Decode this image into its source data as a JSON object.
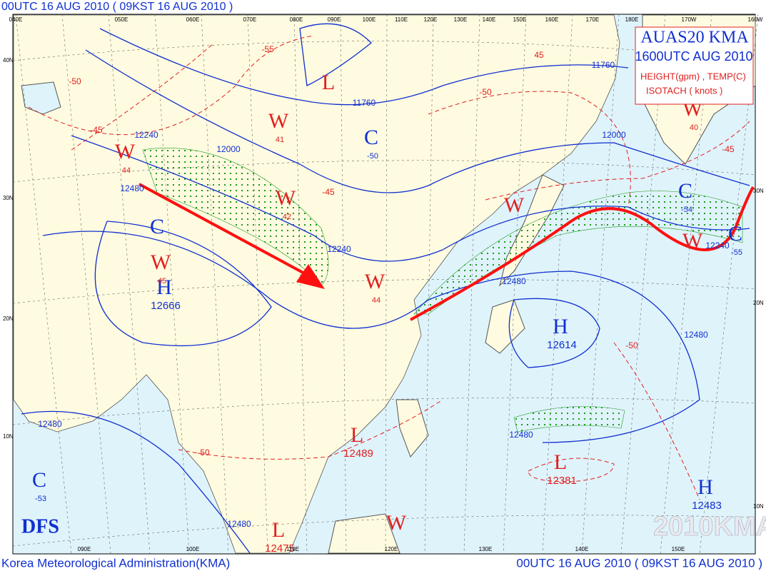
{
  "header": {
    "title": "00UTC 16 AUG 2010 ( 09KST 16 AUG 2010 )"
  },
  "legend_box": {
    "product": "AUAS20 KMA",
    "valid": "1600UTC AUG 2010",
    "line1": "HEIGHT(gpm) , TEMP(C)",
    "line2": "ISOTACH    ( knots )"
  },
  "systems": [
    {
      "symbol": "L",
      "value": null
    },
    {
      "symbol": "C",
      "value": "-50"
    },
    {
      "symbol": "W",
      "value": "41"
    },
    {
      "symbol": "W",
      "value": "44"
    },
    {
      "symbol": "C",
      "value": null
    },
    {
      "symbol": "H",
      "value": "12666"
    },
    {
      "symbol": "W",
      "value": "45"
    },
    {
      "symbol": "W",
      "value": "42"
    },
    {
      "symbol": "W",
      "value": "44"
    },
    {
      "symbol": "H",
      "value": "12614"
    },
    {
      "symbol": "L",
      "value": "12489"
    },
    {
      "symbol": "L",
      "value": "12381"
    },
    {
      "symbol": "H",
      "value": "12483"
    },
    {
      "symbol": "C",
      "value": "-53"
    },
    {
      "symbol": "L",
      "value": "12475"
    },
    {
      "symbol": "W",
      "value": null
    },
    {
      "symbol": "W",
      "value": null
    },
    {
      "symbol": "W",
      "value": null
    },
    {
      "symbol": "C",
      "value": "-54"
    },
    {
      "symbol": "C",
      "value": "-55"
    },
    {
      "symbol": "W",
      "value": "40"
    }
  ],
  "height_labels": [
    "11760",
    "11760",
    "12240",
    "12240",
    "12240",
    "12000",
    "12000",
    "12480",
    "12480",
    "12480",
    "12480",
    "12480",
    "12480"
  ],
  "temp_labels": [
    "-55",
    "-50",
    "-45",
    "-50",
    "45",
    "-45",
    "-50",
    "-50",
    "-45"
  ],
  "lon_top": [
    "040E",
    "050E",
    "060E",
    "070E",
    "080E",
    "090E",
    "100E",
    "110E",
    "120E",
    "130E",
    "140E",
    "150E",
    "160E",
    "170E",
    "180E",
    "170W",
    "160W"
  ],
  "lon_bottom": [
    "090E",
    "100E",
    "110E",
    "120E",
    "130E",
    "140E",
    "150E"
  ],
  "lat_left": [
    "40N",
    "30N",
    "20N",
    "10N"
  ],
  "lat_right": [
    "30N",
    "20N",
    "10N"
  ],
  "logo": "DFS",
  "watermark": "2010KMA",
  "footer": {
    "left": "Korea Meteorological Administration(KMA)",
    "right": "00UTC 16 AUG 2010 ( 09KST 16 AUG 2010 )"
  }
}
